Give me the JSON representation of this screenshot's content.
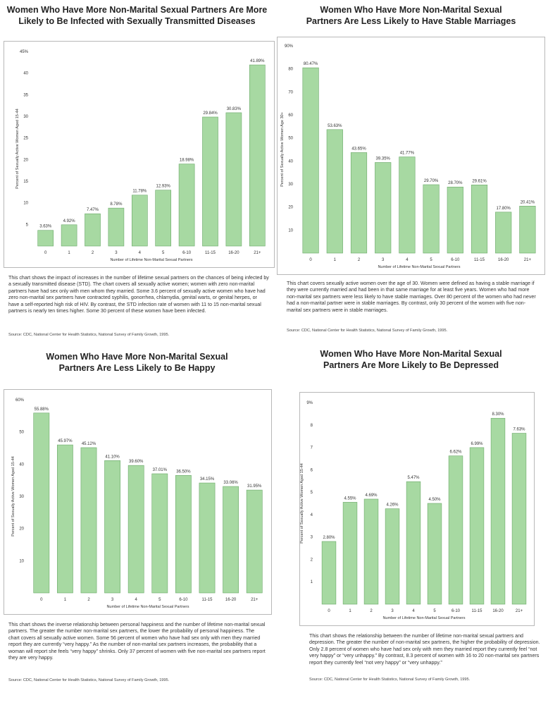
{
  "colors": {
    "bar": "#a7d9a2",
    "bar_stroke": "#6aa868",
    "border": "#b8b8b8"
  },
  "charts": [
    {
      "id": "std",
      "title_lines": [
        "Women Who Have More Non-Marital Sexual Partners Are More",
        "Likely to Be Infected with Sexually Transmitted Diseases"
      ],
      "description": "This chart shows the impact of increases in the number of lifetime sexual partners on the chances of being infected by a sexually transmitted disease (STD). The chart covers all sexually active women; women with zero non-marital partners have had sex only with men whom they married. Some 3.6 percent of sexually active women who have had zero non-marital sex partners have contracted syphilis, gonorrhea, chlamydia, genital warts, or genital herpes, or have a self-reported high risk of HIV. By contrast, the STD infection rate of women with 11 to 15 non-marital sexual partners is nearly ten times higher. Some 30 percent of these women have been infected.",
      "source": "Source:  CDC, National Center for Health Statistics, National Survey of Family Growth, 1995."
    },
    {
      "id": "marriage",
      "title_lines": [
        "Women Who Have More Non-Marital Sexual",
        "Partners Are Less Likely to Have Stable Marriages"
      ],
      "description": "This chart covers sexually active women over the age of 30. Women were defined as having a stable marriage if they were currently married and had been in that same marriage for at least five years. Women who had more non-marital sex partners were less likely to have stable marriages. Over 80 percent of the women who had never had a non-marital partner were in stable marriages. By contrast, only 30 percent of the women with five non-marital sex partners were in stable marriages.",
      "source": "Source:  CDC, National Center for Health Statistics, National Survey of Family Growth, 1995."
    },
    {
      "id": "happy",
      "title_lines": [
        "Women Who Have More Non-Marital Sexual",
        "Partners Are Less Likely to Be Happy"
      ],
      "description": "This chart shows the inverse relationship between personal happiness and the number of lifetime non-marital sexual partners. The greater the number non-marital sex partners, the lower the probability of personal happiness. The chart covers all sexually active women. Some 56 percent of women who have had sex only with men they married report they are currently “very happy.” As the number of non-marital sex partners increases, the probability that a woman will report she feels “very happy” shrinks. Only 37 percent of women with five non-marital sex partners report they are very happy.",
      "source": "Source:  CDC, National Center for Health Statistics, National Survey of Family Growth, 1995."
    },
    {
      "id": "depressed",
      "title_lines": [
        "Women Who Have More Non-Marital Sexual",
        "Partners Are More Likely to Be Depressed"
      ],
      "description": "This chart shows the relationship between the number of lifetime non-marital sexual partners and depression. The greater the number of non-marital sex partners, the higher the probability of depression. Only 2.8 percent of women who have had sex only with men they married report they currently feel “not very happy” or “very unhappy.” By contrast, 8.3 percent of women with 16 to 20 non-marital sex partners report they currently feel “not very happy” or “very unhappy.”",
      "source": "Source:  CDC, National Center for Health Statistics, National Survey of Family Growth, 1995."
    }
  ],
  "chart_data": [
    {
      "type": "bar",
      "categories": [
        "0",
        "1",
        "2",
        "3",
        "4",
        "5",
        "6-10",
        "11-15",
        "16-20",
        "21+"
      ],
      "values": [
        3.63,
        4.92,
        7.47,
        8.78,
        11.78,
        12.93,
        18.98,
        29.84,
        30.83,
        41.89
      ],
      "labels": [
        "3.63%",
        "4.92%",
        "7.47%",
        "8.78%",
        "11.78%",
        "12.93%",
        "18.98%",
        "29.84%",
        "30.83%",
        "41.89%"
      ],
      "xlabel": "Number of Lifetime Non-Marital Sexual Partners",
      "ylabel": "Percent of Sexually Active Women Aged 15-44",
      "ylim": [
        0,
        45
      ],
      "yticks": [
        5,
        10,
        15,
        20,
        25,
        30,
        35,
        40,
        45
      ],
      "ytick_labels": [
        "5",
        "10",
        "15",
        "20",
        "25",
        "30",
        "35",
        "40",
        "45%"
      ]
    },
    {
      "type": "bar",
      "categories": [
        "0",
        "1",
        "2",
        "3",
        "4",
        "5",
        "6-10",
        "11-15",
        "16-20",
        "21+"
      ],
      "values": [
        80.47,
        53.63,
        43.65,
        39.35,
        41.77,
        29.7,
        28.7,
        29.61,
        17.8,
        20.41
      ],
      "labels": [
        "80.47%",
        "53.63%",
        "43.65%",
        "39.35%",
        "41.77%",
        "29.70%",
        "28.70%",
        "29.61%",
        "17.80%",
        "20.41%"
      ],
      "xlabel": "Number of Lifetime Non-Marital Sexual Partners",
      "ylabel": "Percent of Sexually Active Women Age 30+",
      "ylim": [
        0,
        90
      ],
      "yticks": [
        10,
        20,
        30,
        40,
        50,
        60,
        70,
        80,
        90
      ],
      "ytick_labels": [
        "10",
        "20",
        "30",
        "40",
        "50",
        "60",
        "70",
        "80",
        "90%"
      ]
    },
    {
      "type": "bar",
      "categories": [
        "0",
        "1",
        "2",
        "3",
        "4",
        "5",
        "6-10",
        "11-15",
        "16-20",
        "21+"
      ],
      "values": [
        55.88,
        45.97,
        45.12,
        41.1,
        39.6,
        37.01,
        36.5,
        34.15,
        33.06,
        31.95
      ],
      "labels": [
        "55.88%",
        "45.97%",
        "45.12%",
        "41.10%",
        "39.60%",
        "37.01%",
        "36.50%",
        "34.15%",
        "33.06%",
        "31.95%"
      ],
      "xlabel": "Number of Lifetime Non-Marital Sexual Partners",
      "ylabel": "Percent of Sexually Active Women Aged 15-44",
      "ylim": [
        0,
        60
      ],
      "yticks": [
        10,
        20,
        30,
        40,
        50,
        60
      ],
      "ytick_labels": [
        "10",
        "20",
        "30",
        "40",
        "50",
        "60%"
      ]
    },
    {
      "type": "bar",
      "categories": [
        "0",
        "1",
        "2",
        "3",
        "4",
        "5",
        "6-10",
        "11-15",
        "16-20",
        "21+"
      ],
      "values": [
        2.8,
        4.55,
        4.69,
        4.26,
        5.47,
        4.5,
        6.62,
        6.99,
        8.3,
        7.63
      ],
      "labels": [
        "2.80%",
        "4.55%",
        "4.69%",
        "4.26%",
        "5.47%",
        "4.50%",
        "6.62%",
        "6.99%",
        "8.30%",
        "7.63%"
      ],
      "xlabel": "Number of Lifetime Non-Marital Sexual Partners",
      "ylabel": "Percent of Sexually Active Women Aged 15-44",
      "ylim": [
        0,
        9
      ],
      "yticks": [
        1,
        2,
        3,
        4,
        5,
        6,
        7,
        8,
        9
      ],
      "ytick_labels": [
        "1",
        "2",
        "3",
        "4",
        "5",
        "6",
        "7",
        "8",
        "9%"
      ]
    }
  ]
}
